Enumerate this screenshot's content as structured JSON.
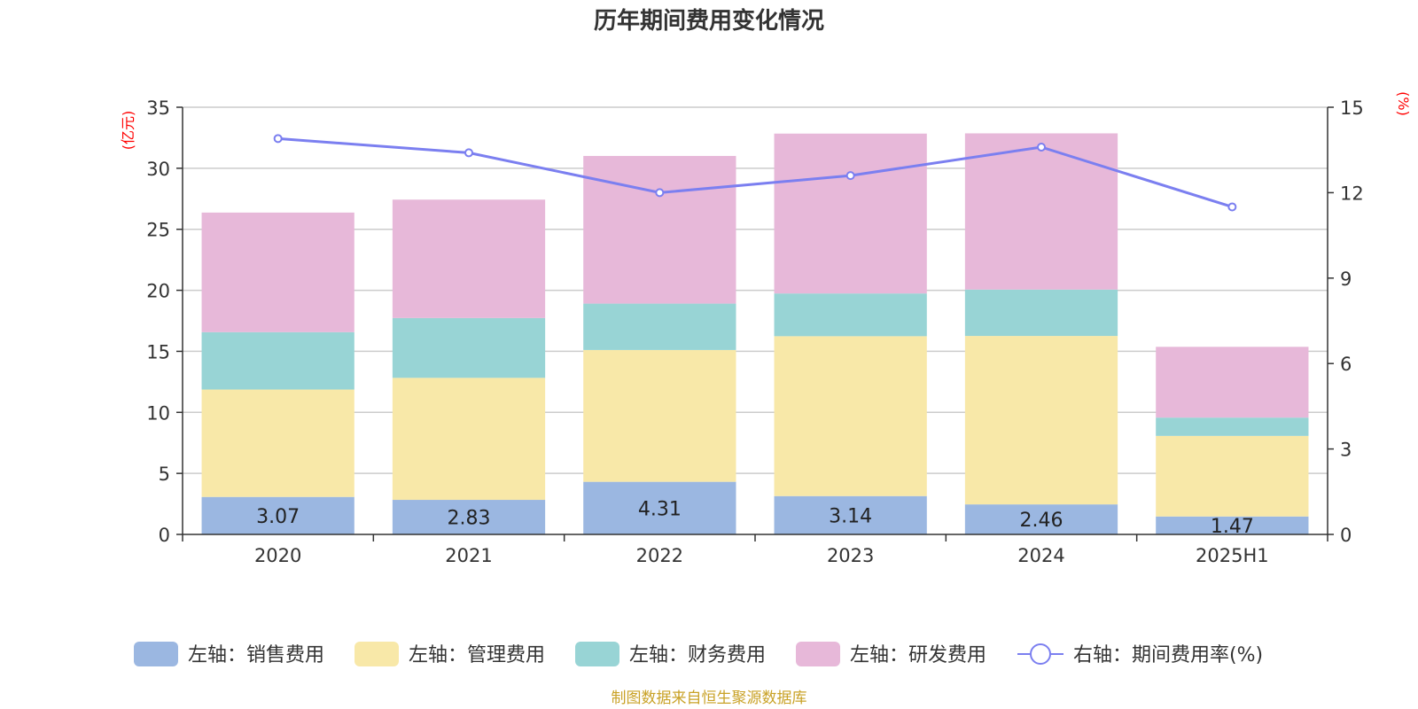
{
  "title": "历年期间费用变化情况",
  "source": "制图数据来自恒生聚源数据库",
  "colors": {
    "sales": "#9bb7e1",
    "admin": "#f8e8a8",
    "finance": "#98d4d5",
    "rd": "#e7b8d9",
    "rate": "#7b7ff0",
    "source": "#c9a227",
    "unit": "#ff0000"
  },
  "chart_data": {
    "type": "bar",
    "stacked": true,
    "title": "历年期间费用变化情况",
    "categories": [
      "2020",
      "2021",
      "2022",
      "2023",
      "2024",
      "2025H1"
    ],
    "y_left": {
      "unit": "(亿元)",
      "range": [
        0,
        35
      ],
      "ticks": [
        "0",
        "5",
        "10",
        "15",
        "20",
        "25",
        "30",
        "35"
      ]
    },
    "y_right": {
      "unit": "(%)",
      "range": [
        0,
        15
      ],
      "ticks": [
        "0",
        "3",
        "6",
        "9",
        "12",
        "15"
      ]
    },
    "grid": true,
    "legend_position": "bottom",
    "series": [
      {
        "key": "sales",
        "name": "左轴：销售费用",
        "axis": "left",
        "values": [
          3.07,
          2.83,
          4.31,
          3.14,
          2.46,
          1.47
        ],
        "labels": [
          "3.07",
          "2.83",
          "4.31",
          "3.14",
          "2.46",
          "1.47"
        ]
      },
      {
        "key": "admin",
        "name": "左轴：管理费用",
        "axis": "left",
        "values": [
          8.8,
          10.0,
          10.8,
          13.1,
          13.8,
          6.6
        ]
      },
      {
        "key": "finance",
        "name": "左轴：财务费用",
        "axis": "left",
        "values": [
          4.7,
          4.9,
          3.8,
          3.5,
          3.8,
          1.5
        ]
      },
      {
        "key": "rd",
        "name": "左轴：研发费用",
        "axis": "left",
        "values": [
          9.8,
          9.7,
          12.1,
          13.1,
          12.8,
          5.8
        ]
      },
      {
        "key": "rate",
        "name": "右轴：期间费用率(%)",
        "axis": "right",
        "type": "line",
        "values": [
          13.9,
          13.4,
          12.0,
          12.6,
          13.6,
          11.5
        ]
      }
    ]
  }
}
